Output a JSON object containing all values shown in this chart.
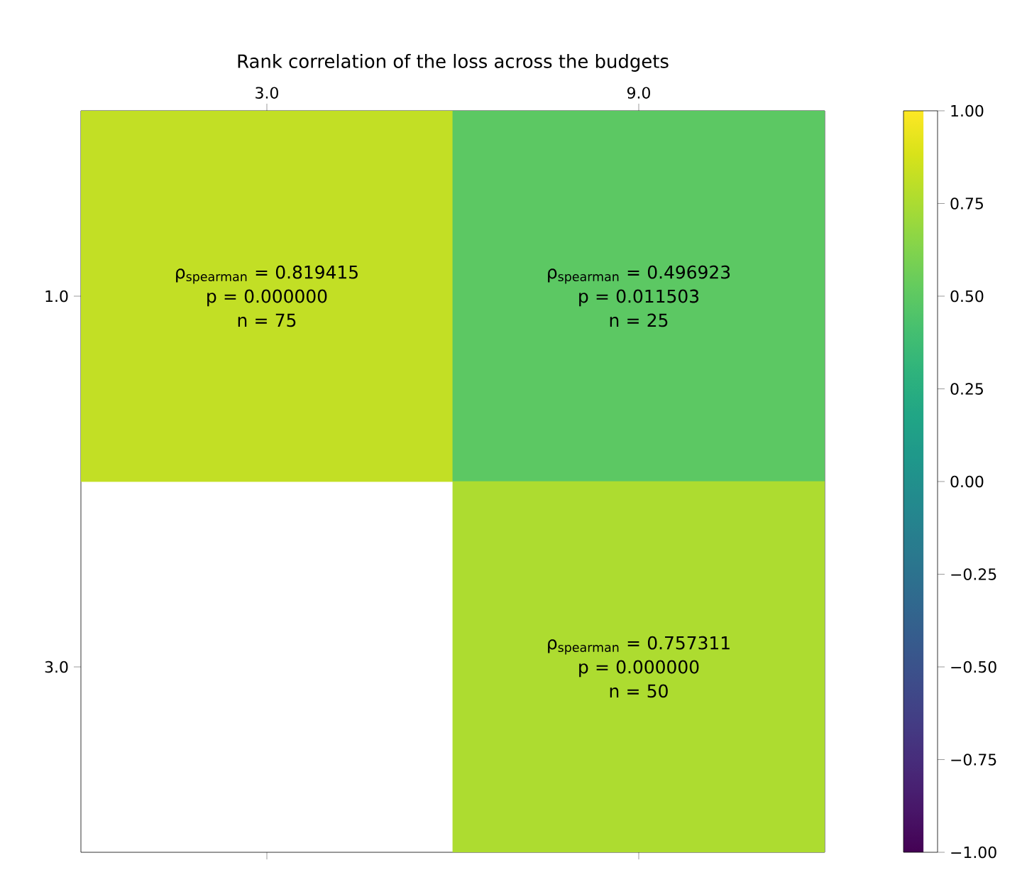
{
  "chart_data": {
    "type": "heatmap",
    "title": "Rank correlation of the loss across the budgets",
    "categories": [
      "3.0",
      "9.0"
    ],
    "y_categories": [
      "1.0",
      "3.0"
    ],
    "cells": [
      [
        0.819415,
        0.496923
      ],
      [
        null,
        0.757311
      ]
    ],
    "cell_labels": [
      [
        "ρ$_{spearman}$ = 0.819415\np = 0.000000\nn = 75",
        "ρ$_{spearman}$ = 0.496923\np = 0.011503\nn = 25"
      ],
      [
        null,
        "ρ$_{spearman}$ = 0.757311\np = 0.000000\nn = 50"
      ]
    ],
    "clim": [
      -1,
      1
    ],
    "cticks": [
      {
        "value": -1,
        "label": "−1.00"
      },
      {
        "value": -0.75,
        "label": "−0.75"
      },
      {
        "value": -0.5,
        "label": "−0.50"
      },
      {
        "value": -0.25,
        "label": "−0.25"
      },
      {
        "value": 0,
        "label": "0.00"
      },
      {
        "value": 0.25,
        "label": "0.25"
      },
      {
        "value": 0.5,
        "label": "0.50"
      },
      {
        "value": 0.75,
        "label": "0.75"
      },
      {
        "value": 1,
        "label": "1.00"
      }
    ]
  }
}
